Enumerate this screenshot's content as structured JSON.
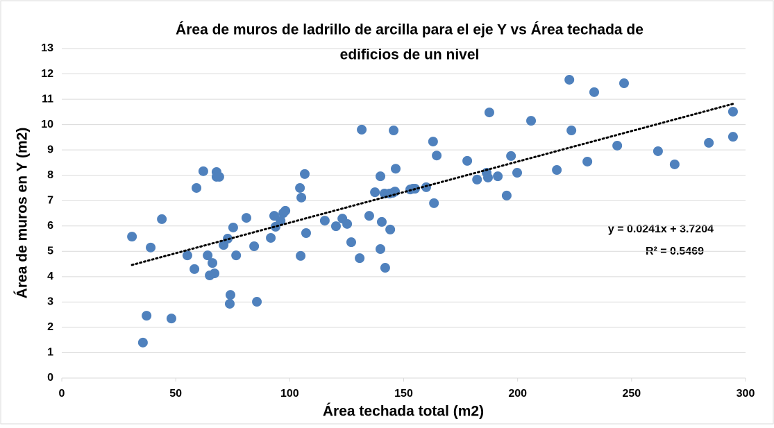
{
  "chart_data": {
    "type": "scatter",
    "title": [
      "Área de muros de ladrillo de arcilla para el eje Y vs Área techada de",
      "edificios de un nivel"
    ],
    "x_label": "Área techada total (m2)",
    "y_label": "Área de muros en Y (m2)",
    "series": [
      {
        "color": "#4f81bd",
        "x": [
          30.8,
          35.6,
          37.2,
          39.0,
          43.9,
          48.1,
          55.1,
          58.2,
          59.1,
          62.1,
          64.0,
          64.9,
          66.1,
          67.0,
          67.9,
          67.9,
          69.1,
          71.0,
          72.8,
          74.0,
          73.7,
          75.2,
          76.5,
          81.0,
          84.4,
          85.6,
          91.7,
          93.2,
          93.8,
          96.0,
          97.2,
          98.1,
          104.5,
          105.1,
          104.8,
          106.6,
          107.2,
          115.4,
          120.3,
          123.1,
          125.2,
          127.0,
          130.7,
          131.6,
          134.9,
          137.4,
          139.8,
          139.8,
          140.4,
          141.6,
          141.9,
          143.8,
          144.1,
          145.3,
          146.2,
          145.6,
          146.5,
          152.9,
          154.1,
          155.0,
          159.9,
          162.9,
          163.3,
          164.5,
          177.9,
          182.2,
          186.4,
          187.0,
          187.6,
          191.3,
          195.2,
          197.1,
          199.8,
          205.9,
          217.2,
          222.7,
          223.6,
          233.6,
          230.6,
          243.7,
          246.7,
          261.6,
          268.9,
          283.9,
          294.5,
          294.5
        ],
        "values": [
          5.58,
          1.4,
          2.46,
          5.15,
          6.27,
          2.35,
          4.84,
          4.3,
          7.5,
          8.16,
          4.84,
          4.05,
          4.54,
          4.13,
          8.13,
          7.94,
          7.94,
          5.25,
          5.5,
          3.28,
          2.93,
          5.94,
          4.84,
          6.32,
          5.2,
          3.01,
          5.53,
          6.4,
          5.97,
          6.21,
          6.51,
          6.6,
          7.5,
          7.12,
          4.82,
          8.05,
          5.72,
          6.21,
          5.99,
          6.29,
          6.08,
          5.36,
          4.73,
          9.8,
          6.4,
          7.33,
          7.96,
          5.09,
          6.16,
          7.28,
          4.35,
          7.28,
          5.86,
          7.31,
          7.36,
          9.77,
          8.26,
          7.44,
          7.47,
          7.47,
          7.53,
          9.33,
          6.9,
          8.78,
          8.57,
          7.83,
          8.1,
          7.91,
          10.48,
          7.96,
          7.2,
          8.76,
          8.1,
          10.15,
          8.21,
          11.77,
          9.77,
          11.28,
          8.54,
          9.17,
          11.63,
          8.95,
          8.43,
          9.28,
          9.52,
          10.51
        ]
      }
    ],
    "trendline": {
      "slope": 0.0241,
      "intercept": 3.7204,
      "equation": "y = 0.0241x + 3.7204",
      "r2": "R² = 0.5469"
    },
    "xlim": [
      0,
      300
    ],
    "xticks": [
      0,
      50,
      100,
      150,
      200,
      250,
      300
    ],
    "ylim": [
      0,
      13
    ],
    "yticks": [
      0,
      1,
      2,
      3,
      4,
      5,
      6,
      7,
      8,
      9,
      10,
      11,
      12,
      13
    ],
    "grid": true
  }
}
